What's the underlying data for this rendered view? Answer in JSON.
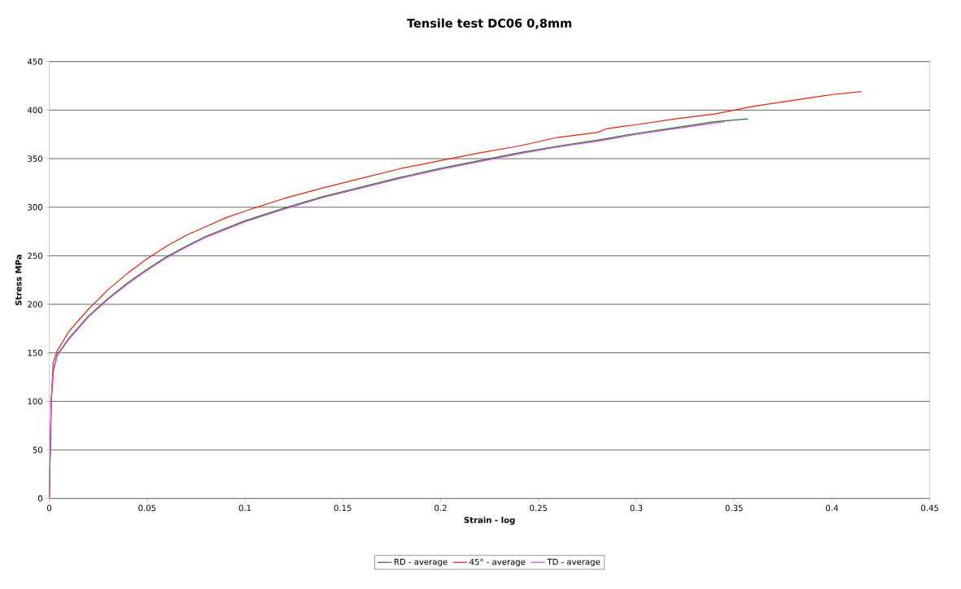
{
  "chart_data": {
    "type": "line",
    "title": "Tensile test DC06 0,8mm",
    "xlabel": "Strain - log",
    "ylabel": "Stress MPa",
    "xlim": [
      0,
      0.45
    ],
    "ylim": [
      0,
      450
    ],
    "xticks": [
      0,
      0.05,
      0.1,
      0.15,
      0.2,
      0.25,
      0.3,
      0.35,
      0.4,
      0.45
    ],
    "yticks": [
      0,
      50,
      100,
      150,
      200,
      250,
      300,
      350,
      400,
      450
    ],
    "grid": "y",
    "legend": "bottom",
    "marker": "none",
    "line_style": "solid",
    "series": [
      {
        "name": "RD - average",
        "color": "#1a7a1a",
        "x": [
          0,
          0.001,
          0.002,
          0.004,
          0.01,
          0.02,
          0.03,
          0.04,
          0.05,
          0.06,
          0.07,
          0.08,
          0.1,
          0.12,
          0.14,
          0.16,
          0.18,
          0.2,
          0.22,
          0.24,
          0.26,
          0.28,
          0.3,
          0.32,
          0.34,
          0.357
        ],
        "values": [
          0,
          100,
          130,
          148,
          165,
          188,
          206,
          222,
          236,
          249,
          260,
          270,
          286,
          299,
          311,
          321,
          331,
          340,
          348,
          356,
          363,
          369,
          376,
          382,
          388,
          391
        ]
      },
      {
        "name": "45° - average",
        "color": "#e8200c",
        "x": [
          0,
          0.001,
          0.002,
          0.004,
          0.01,
          0.02,
          0.03,
          0.04,
          0.05,
          0.06,
          0.07,
          0.08,
          0.09,
          0.1,
          0.12,
          0.14,
          0.16,
          0.18,
          0.2,
          0.22,
          0.24,
          0.26,
          0.28,
          0.285,
          0.3,
          0.32,
          0.34,
          0.36,
          0.38,
          0.4,
          0.415
        ],
        "values": [
          0,
          100,
          140,
          152,
          172,
          195,
          215,
          232,
          247,
          260,
          271,
          280,
          289,
          296,
          309,
          320,
          330,
          340,
          348,
          356,
          363,
          372,
          377,
          381,
          385,
          391,
          396,
          404,
          410,
          416,
          419
        ]
      },
      {
        "name": "TD - average",
        "color": "#e040e8",
        "x": [
          0,
          0.001,
          0.002,
          0.004,
          0.01,
          0.02,
          0.03,
          0.04,
          0.05,
          0.06,
          0.07,
          0.08,
          0.1,
          0.12,
          0.14,
          0.16,
          0.18,
          0.2,
          0.22,
          0.24,
          0.26,
          0.28,
          0.3,
          0.32,
          0.345
        ],
        "values": [
          0,
          100,
          132,
          147,
          164,
          187,
          205,
          221,
          235,
          248,
          259,
          269,
          285,
          298,
          310,
          320,
          330,
          339,
          347,
          355,
          362,
          368,
          375,
          381,
          388
        ]
      }
    ]
  }
}
